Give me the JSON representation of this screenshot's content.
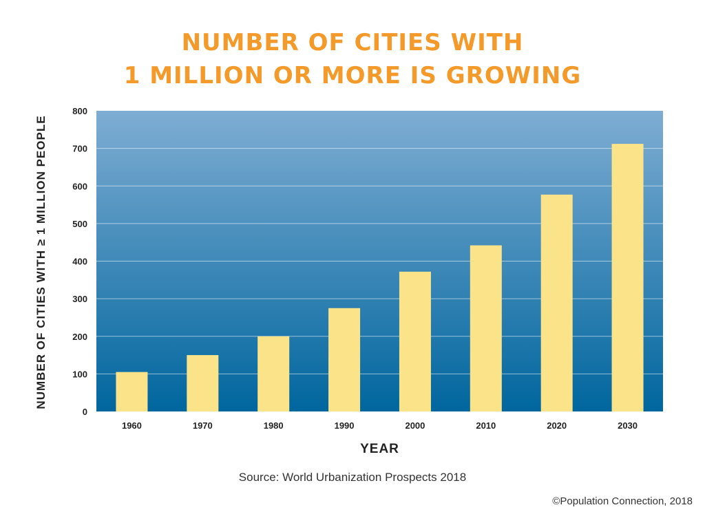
{
  "page": {
    "title_line1": "NUMBER OF CITIES WITH",
    "title_line2": "1 MILLION OR MORE IS GROWING",
    "source": "Source: World Urbanization Prospects 2018",
    "copyright": "©Population Connection, 2018"
  },
  "colors": {
    "title": "#f39a2b",
    "bar": "#fbe38a",
    "plot_top": "#7fadd3",
    "plot_bottom": "#00669e",
    "grid": "#ffffff"
  },
  "chart_data": {
    "type": "bar",
    "title": "NUMBER OF CITIES WITH 1 MILLION OR MORE IS GROWING",
    "xlabel": "YEAR",
    "ylabel": "NUMBER OF CITIES WITH ≥ 1 MILLION PEOPLE",
    "categories": [
      "1960",
      "1970",
      "1980",
      "1990",
      "2000",
      "2010",
      "2020",
      "2030"
    ],
    "values": [
      105,
      150,
      200,
      275,
      372,
      442,
      577,
      712
    ],
    "ylim": [
      0,
      800
    ],
    "yticks": [
      "0",
      "100",
      "200",
      "300",
      "400",
      "500",
      "600",
      "700",
      "800"
    ],
    "grid": true,
    "legend": "none"
  }
}
